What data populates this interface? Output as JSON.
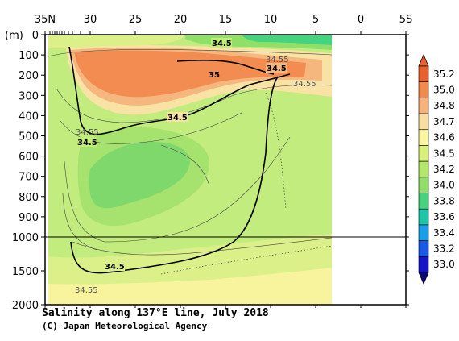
{
  "chart_data": {
    "type": "heatmap",
    "title": "Salinity along 137°E line, July 2018",
    "credit": "(C) Japan Meteorological Agency",
    "y_unit_label": "(m)",
    "x_tick_labels": [
      "35N",
      "30",
      "25",
      "20",
      "15",
      "10",
      "5",
      "0",
      "5S"
    ],
    "x_ticks_lat": [
      35,
      30,
      25,
      20,
      15,
      10,
      5,
      0,
      -5
    ],
    "x_range_lat": [
      35,
      -5
    ],
    "data_lat_range": [
      34,
      3
    ],
    "y_tick_labels_upper": [
      "0",
      "100",
      "200",
      "300",
      "400",
      "500",
      "600",
      "700",
      "800",
      "900",
      "1000"
    ],
    "y_tick_labels_lower": [
      "1500",
      "2000"
    ],
    "y_range_m": [
      0,
      2000
    ],
    "y_axis_break_m": 1000,
    "colorbar": {
      "labels": [
        "35.2",
        "35.0",
        "34.8",
        "34.7",
        "34.6",
        "34.5",
        "34.2",
        "34.0",
        "33.8",
        "33.6",
        "33.4",
        "33.2",
        "33.0"
      ],
      "colors": [
        "#e8602c",
        "#f28a4b",
        "#f6b27a",
        "#f8dfa0",
        "#fbf6a2",
        "#d9f07a",
        "#b4e86a",
        "#8fdf68",
        "#45d380",
        "#1ec6a8",
        "#1a9ee6",
        "#1a59e6",
        "#1414c8"
      ]
    },
    "contour_labels": [
      "34.5",
      "34.5",
      "35",
      "34.5",
      "34.5",
      "34.5",
      "34.5",
      "34.55",
      "34.55",
      "34.55",
      "34.55"
    ]
  }
}
